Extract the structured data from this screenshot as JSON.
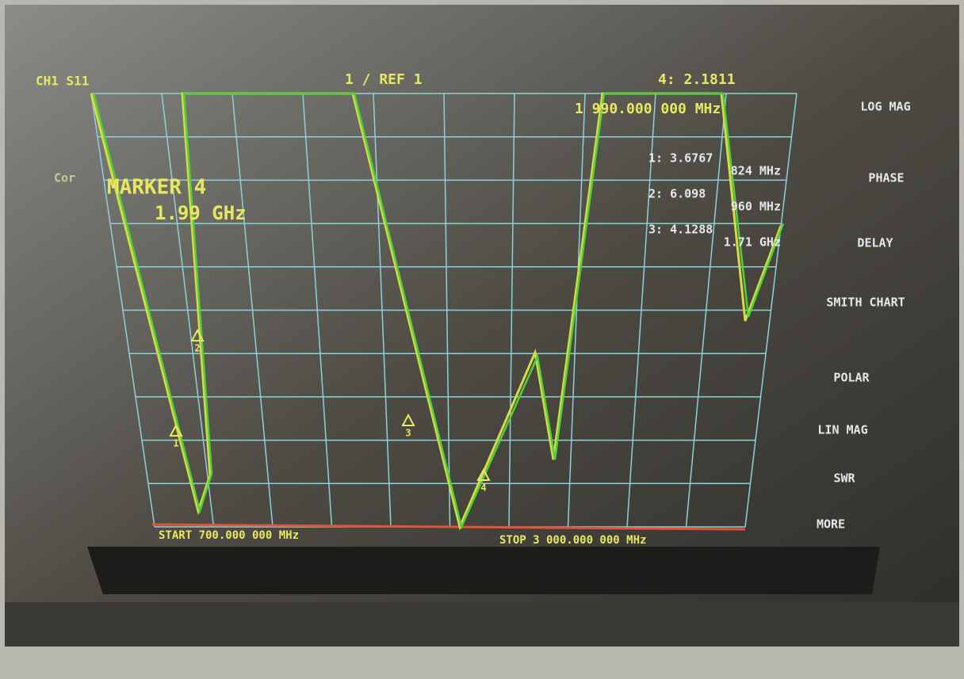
{
  "header": {
    "channel": "CH1 S11",
    "ref": "1 / REF 1",
    "marker_readout": "4: 2.1811",
    "marker_freq": "1 990.000 000 MHz"
  },
  "active_marker": {
    "cor": "Cor",
    "label": "MARKER 4",
    "value": "1.99 GHz"
  },
  "markers": [
    {
      "value": "1: 3.6767",
      "freq": "824 MHz"
    },
    {
      "value": "2: 6.098",
      "freq": "960 MHz"
    },
    {
      "value": "3: 4.1288",
      "freq": "1.71 GHz"
    }
  ],
  "trace_marker_labels": [
    "1",
    "2",
    "3",
    "4"
  ],
  "footer": {
    "start": "START 700.000 000 MHz",
    "stop": "STOP 3 000.000 000 MHz"
  },
  "softkeys": [
    "LOG MAG",
    "PHASE",
    "DELAY",
    "SMITH CHART",
    "POLAR",
    "LIN MAG",
    "SWR",
    "MORE"
  ]
}
